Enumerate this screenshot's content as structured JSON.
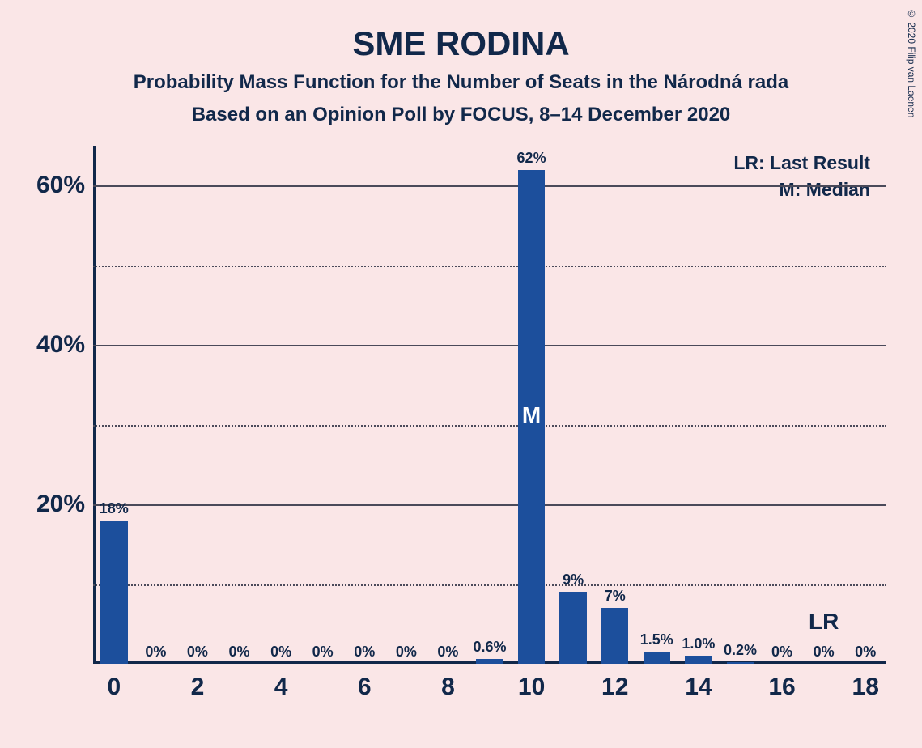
{
  "colors": {
    "background": "#fae6e7",
    "text": "#11284a",
    "bar": "#1c4f9c",
    "axis": "#11284a",
    "grid": "#4a4a5a"
  },
  "title": "SME RODINA",
  "subtitle1": "Probability Mass Function for the Number of Seats in the Národná rada",
  "subtitle2": "Based on an Opinion Poll by FOCUS, 8–14 December 2020",
  "copyright": "© 2020 Filip van Laenen",
  "legend": {
    "lr": "LR: Last Result",
    "m": "M: Median"
  },
  "chart": {
    "type": "bar",
    "ylim": [
      0,
      65
    ],
    "y_major_ticks": [
      20,
      40,
      60
    ],
    "y_minor_ticks": [
      10,
      30,
      50
    ],
    "y_tick_labels": [
      "20%",
      "40%",
      "60%"
    ],
    "x_categories": [
      0,
      1,
      2,
      3,
      4,
      5,
      6,
      7,
      8,
      9,
      10,
      11,
      12,
      13,
      14,
      15,
      16,
      17,
      18
    ],
    "x_tick_labels": [
      "0",
      "2",
      "4",
      "6",
      "8",
      "10",
      "12",
      "14",
      "16",
      "18"
    ],
    "x_tick_positions": [
      0,
      2,
      4,
      6,
      8,
      10,
      12,
      14,
      16,
      18
    ],
    "values": [
      18,
      0,
      0,
      0,
      0,
      0,
      0,
      0,
      0,
      0.6,
      62,
      9,
      7,
      1.5,
      1.0,
      0.2,
      0,
      0,
      0
    ],
    "value_labels": [
      "18%",
      "0%",
      "0%",
      "0%",
      "0%",
      "0%",
      "0%",
      "0%",
      "0%",
      "0.6%",
      "62%",
      "9%",
      "7%",
      "1.5%",
      "1.0%",
      "0.2%",
      "0%",
      "0%",
      "0%"
    ],
    "median_index": 10,
    "median_marker": "M",
    "lr_index": 17,
    "lr_marker": "LR",
    "bar_width": 0.65
  }
}
